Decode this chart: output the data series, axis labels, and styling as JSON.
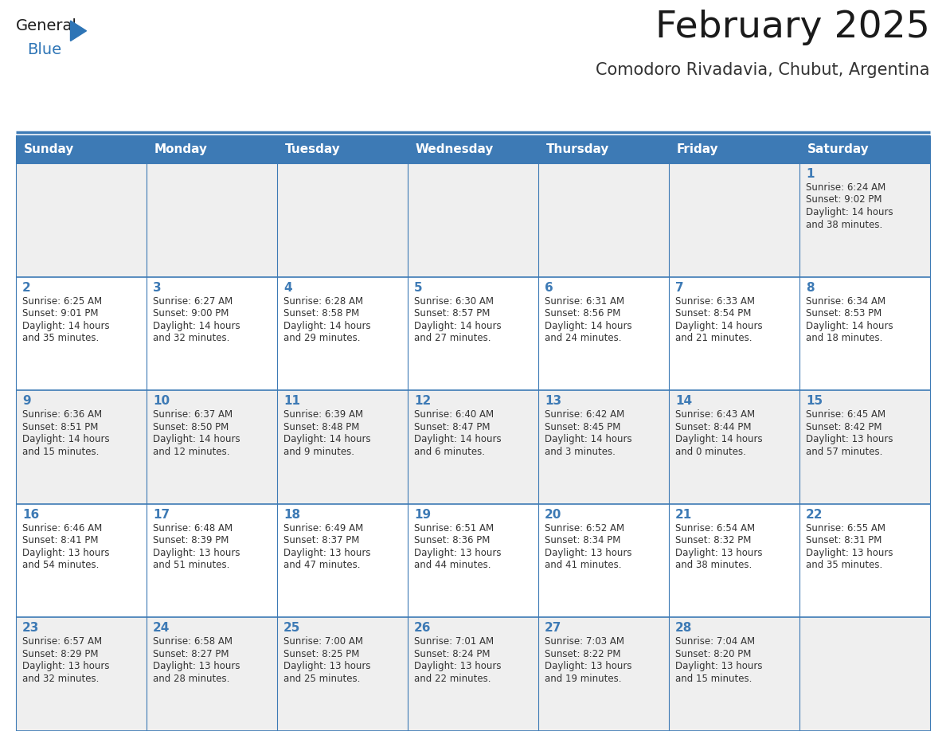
{
  "title": "February 2025",
  "subtitle": "Comodoro Rivadavia, Chubut, Argentina",
  "days_of_week": [
    "Sunday",
    "Monday",
    "Tuesday",
    "Wednesday",
    "Thursday",
    "Friday",
    "Saturday"
  ],
  "header_bg": "#3D7AB5",
  "header_text": "#FFFFFF",
  "row_bg_odd": "#EFEFEF",
  "row_bg_even": "#FFFFFF",
  "day_num_color": "#3D7AB5",
  "cell_text_color": "#333333",
  "border_color": "#3D7AB5",
  "title_color": "#1A1A1A",
  "subtitle_color": "#333333",
  "logo_general_color": "#1A1A1A",
  "logo_blue_color": "#2E75B6",
  "calendar_data": [
    [
      null,
      null,
      null,
      null,
      null,
      null,
      {
        "day": 1,
        "sunrise": "6:24 AM",
        "sunset": "9:02 PM",
        "daylight_h": "14 hours",
        "daylight_m": "and 38 minutes."
      }
    ],
    [
      {
        "day": 2,
        "sunrise": "6:25 AM",
        "sunset": "9:01 PM",
        "daylight_h": "14 hours",
        "daylight_m": "and 35 minutes."
      },
      {
        "day": 3,
        "sunrise": "6:27 AM",
        "sunset": "9:00 PM",
        "daylight_h": "14 hours",
        "daylight_m": "and 32 minutes."
      },
      {
        "day": 4,
        "sunrise": "6:28 AM",
        "sunset": "8:58 PM",
        "daylight_h": "14 hours",
        "daylight_m": "and 29 minutes."
      },
      {
        "day": 5,
        "sunrise": "6:30 AM",
        "sunset": "8:57 PM",
        "daylight_h": "14 hours",
        "daylight_m": "and 27 minutes."
      },
      {
        "day": 6,
        "sunrise": "6:31 AM",
        "sunset": "8:56 PM",
        "daylight_h": "14 hours",
        "daylight_m": "and 24 minutes."
      },
      {
        "day": 7,
        "sunrise": "6:33 AM",
        "sunset": "8:54 PM",
        "daylight_h": "14 hours",
        "daylight_m": "and 21 minutes."
      },
      {
        "day": 8,
        "sunrise": "6:34 AM",
        "sunset": "8:53 PM",
        "daylight_h": "14 hours",
        "daylight_m": "and 18 minutes."
      }
    ],
    [
      {
        "day": 9,
        "sunrise": "6:36 AM",
        "sunset": "8:51 PM",
        "daylight_h": "14 hours",
        "daylight_m": "and 15 minutes."
      },
      {
        "day": 10,
        "sunrise": "6:37 AM",
        "sunset": "8:50 PM",
        "daylight_h": "14 hours",
        "daylight_m": "and 12 minutes."
      },
      {
        "day": 11,
        "sunrise": "6:39 AM",
        "sunset": "8:48 PM",
        "daylight_h": "14 hours",
        "daylight_m": "and 9 minutes."
      },
      {
        "day": 12,
        "sunrise": "6:40 AM",
        "sunset": "8:47 PM",
        "daylight_h": "14 hours",
        "daylight_m": "and 6 minutes."
      },
      {
        "day": 13,
        "sunrise": "6:42 AM",
        "sunset": "8:45 PM",
        "daylight_h": "14 hours",
        "daylight_m": "and 3 minutes."
      },
      {
        "day": 14,
        "sunrise": "6:43 AM",
        "sunset": "8:44 PM",
        "daylight_h": "14 hours",
        "daylight_m": "and 0 minutes."
      },
      {
        "day": 15,
        "sunrise": "6:45 AM",
        "sunset": "8:42 PM",
        "daylight_h": "13 hours",
        "daylight_m": "and 57 minutes."
      }
    ],
    [
      {
        "day": 16,
        "sunrise": "6:46 AM",
        "sunset": "8:41 PM",
        "daylight_h": "13 hours",
        "daylight_m": "and 54 minutes."
      },
      {
        "day": 17,
        "sunrise": "6:48 AM",
        "sunset": "8:39 PM",
        "daylight_h": "13 hours",
        "daylight_m": "and 51 minutes."
      },
      {
        "day": 18,
        "sunrise": "6:49 AM",
        "sunset": "8:37 PM",
        "daylight_h": "13 hours",
        "daylight_m": "and 47 minutes."
      },
      {
        "day": 19,
        "sunrise": "6:51 AM",
        "sunset": "8:36 PM",
        "daylight_h": "13 hours",
        "daylight_m": "and 44 minutes."
      },
      {
        "day": 20,
        "sunrise": "6:52 AM",
        "sunset": "8:34 PM",
        "daylight_h": "13 hours",
        "daylight_m": "and 41 minutes."
      },
      {
        "day": 21,
        "sunrise": "6:54 AM",
        "sunset": "8:32 PM",
        "daylight_h": "13 hours",
        "daylight_m": "and 38 minutes."
      },
      {
        "day": 22,
        "sunrise": "6:55 AM",
        "sunset": "8:31 PM",
        "daylight_h": "13 hours",
        "daylight_m": "and 35 minutes."
      }
    ],
    [
      {
        "day": 23,
        "sunrise": "6:57 AM",
        "sunset": "8:29 PM",
        "daylight_h": "13 hours",
        "daylight_m": "and 32 minutes."
      },
      {
        "day": 24,
        "sunrise": "6:58 AM",
        "sunset": "8:27 PM",
        "daylight_h": "13 hours",
        "daylight_m": "and 28 minutes."
      },
      {
        "day": 25,
        "sunrise": "7:00 AM",
        "sunset": "8:25 PM",
        "daylight_h": "13 hours",
        "daylight_m": "and 25 minutes."
      },
      {
        "day": 26,
        "sunrise": "7:01 AM",
        "sunset": "8:24 PM",
        "daylight_h": "13 hours",
        "daylight_m": "and 22 minutes."
      },
      {
        "day": 27,
        "sunrise": "7:03 AM",
        "sunset": "8:22 PM",
        "daylight_h": "13 hours",
        "daylight_m": "and 19 minutes."
      },
      {
        "day": 28,
        "sunrise": "7:04 AM",
        "sunset": "8:20 PM",
        "daylight_h": "13 hours",
        "daylight_m": "and 15 minutes."
      },
      null
    ]
  ]
}
